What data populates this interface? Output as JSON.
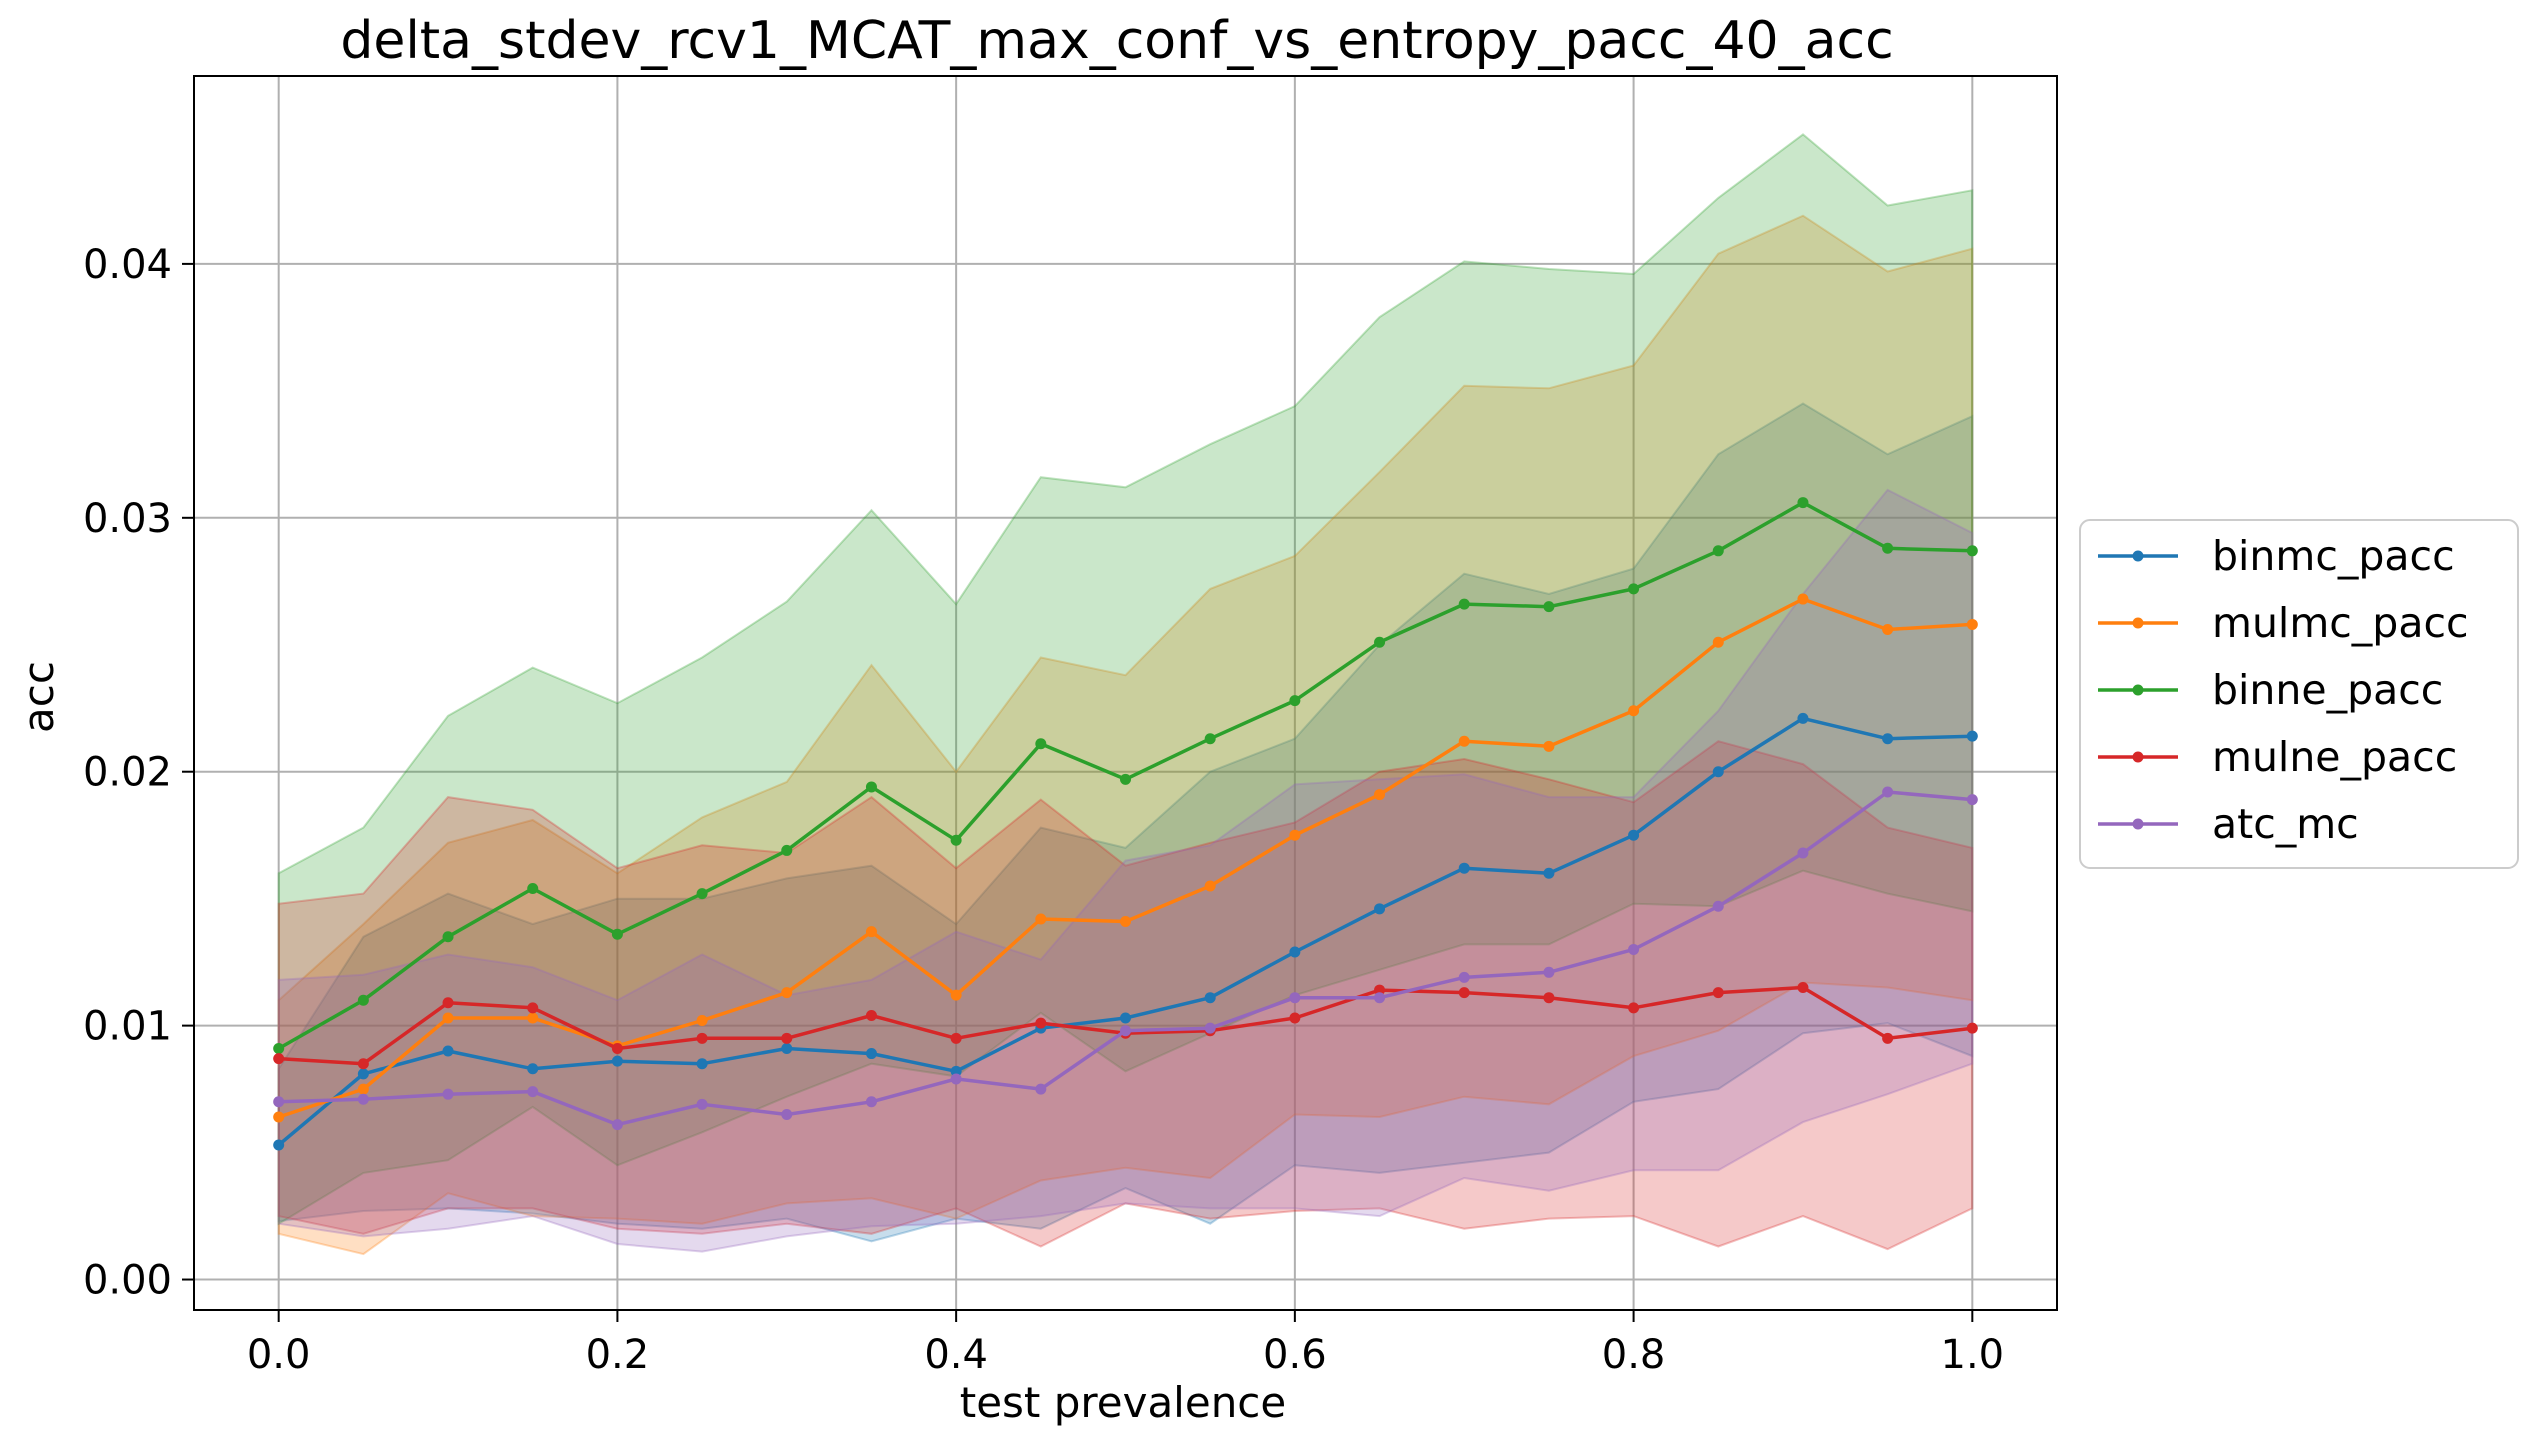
{
  "chart_data": {
    "type": "line",
    "title": "delta_stdev_rcv1_MCAT_max_conf_vs_entropy_pacc_40_acc",
    "xlabel": "test prevalence",
    "ylabel": "acc",
    "xlim": [
      -0.05,
      1.05
    ],
    "ylim": [
      -0.0012,
      0.0474
    ],
    "grid": true,
    "legend_position": "center-right outside",
    "x": [
      0.0,
      0.05,
      0.1,
      0.15,
      0.2,
      0.25,
      0.3,
      0.35,
      0.4,
      0.45,
      0.5,
      0.55,
      0.6,
      0.65,
      0.7,
      0.75,
      0.8,
      0.85,
      0.9,
      0.95,
      1.0
    ],
    "x_ticks": [
      "0.0",
      "0.2",
      "0.4",
      "0.6",
      "0.8",
      "1.0"
    ],
    "x_tick_values": [
      0.0,
      0.2,
      0.4,
      0.6,
      0.8,
      1.0
    ],
    "y_ticks": [
      "0.00",
      "0.01",
      "0.02",
      "0.03",
      "0.04"
    ],
    "y_tick_values": [
      0.0,
      0.01,
      0.02,
      0.03,
      0.04
    ],
    "series": [
      {
        "name": "binmc_pacc",
        "color": "#1f77b4",
        "values": [
          0.0053,
          0.0081,
          0.009,
          0.0083,
          0.0086,
          0.0085,
          0.0091,
          0.0089,
          0.0082,
          0.0099,
          0.0103,
          0.0111,
          0.0129,
          0.0146,
          0.0162,
          0.016,
          0.0175,
          0.02,
          0.0221,
          0.0213,
          0.0214
        ],
        "upper": [
          0.0083,
          0.0135,
          0.0152,
          0.014,
          0.015,
          0.015,
          0.0158,
          0.0163,
          0.014,
          0.0178,
          0.017,
          0.02,
          0.0213,
          0.025,
          0.0278,
          0.027,
          0.028,
          0.0325,
          0.0345,
          0.0325,
          0.034
        ],
        "lower": [
          0.0023,
          0.0027,
          0.0028,
          0.0026,
          0.0022,
          0.002,
          0.0024,
          0.0015,
          0.0024,
          0.002,
          0.0036,
          0.0022,
          0.0045,
          0.0042,
          0.0046,
          0.005,
          0.007,
          0.0075,
          0.0097,
          0.0101,
          0.0088
        ]
      },
      {
        "name": "mulmc_pacc",
        "color": "#ff7f0e",
        "values": [
          0.0064,
          0.0075,
          0.0103,
          0.0103,
          0.0092,
          0.0102,
          0.0113,
          0.0137,
          0.0112,
          0.0142,
          0.0141,
          0.0155,
          0.0175,
          0.0191,
          0.0212,
          0.021,
          0.0224,
          0.0251,
          0.0268,
          0.0256,
          0.0258
        ],
        "upper": [
          0.011,
          0.014,
          0.0172,
          0.0181,
          0.016,
          0.0182,
          0.0196,
          0.0242,
          0.02,
          0.0245,
          0.0238,
          0.0272,
          0.0285,
          0.0318,
          0.0352,
          0.0351,
          0.036,
          0.0404,
          0.0419,
          0.0397,
          0.0406
        ],
        "lower": [
          0.0018,
          0.001,
          0.0034,
          0.0025,
          0.0024,
          0.0022,
          0.003,
          0.0032,
          0.0024,
          0.0039,
          0.0044,
          0.004,
          0.0065,
          0.0064,
          0.0072,
          0.0069,
          0.0088,
          0.0098,
          0.0117,
          0.0115,
          0.011
        ]
      },
      {
        "name": "binne_pacc",
        "color": "#2ca02c",
        "values": [
          0.0091,
          0.011,
          0.0135,
          0.0154,
          0.0136,
          0.0152,
          0.0169,
          0.0194,
          0.0173,
          0.0211,
          0.0197,
          0.0213,
          0.0228,
          0.0251,
          0.0266,
          0.0265,
          0.0272,
          0.0287,
          0.0306,
          0.0288,
          0.0287
        ],
        "upper": [
          0.016,
          0.0178,
          0.0222,
          0.0241,
          0.0227,
          0.0245,
          0.0267,
          0.0303,
          0.0266,
          0.0316,
          0.0312,
          0.0329,
          0.0344,
          0.0379,
          0.0401,
          0.0398,
          0.0396,
          0.0426,
          0.0451,
          0.0423,
          0.0429
        ],
        "lower": [
          0.0022,
          0.0042,
          0.0047,
          0.0068,
          0.0045,
          0.0058,
          0.0072,
          0.0085,
          0.008,
          0.0105,
          0.0082,
          0.0097,
          0.0112,
          0.0122,
          0.0132,
          0.0132,
          0.0148,
          0.0147,
          0.0161,
          0.0152,
          0.0145
        ]
      },
      {
        "name": "mulne_pacc",
        "color": "#d62728",
        "values": [
          0.0087,
          0.0085,
          0.0109,
          0.0107,
          0.0091,
          0.0095,
          0.0095,
          0.0104,
          0.0095,
          0.0101,
          0.0097,
          0.0098,
          0.0103,
          0.0114,
          0.0113,
          0.0111,
          0.0107,
          0.0113,
          0.0115,
          0.0095,
          0.0099
        ],
        "upper": [
          0.0148,
          0.0152,
          0.019,
          0.0185,
          0.0162,
          0.0171,
          0.0168,
          0.019,
          0.0162,
          0.0189,
          0.0163,
          0.0172,
          0.018,
          0.02,
          0.0205,
          0.0197,
          0.0188,
          0.0212,
          0.0203,
          0.0178,
          0.017
        ],
        "lower": [
          0.0025,
          0.0018,
          0.0028,
          0.0028,
          0.002,
          0.0018,
          0.0022,
          0.0018,
          0.0028,
          0.0013,
          0.003,
          0.0024,
          0.0027,
          0.0028,
          0.002,
          0.0024,
          0.0025,
          0.0013,
          0.0025,
          0.0012,
          0.0028
        ]
      },
      {
        "name": "atc_mc",
        "color": "#9467bd",
        "values": [
          0.007,
          0.0071,
          0.0073,
          0.0074,
          0.0061,
          0.0069,
          0.0065,
          0.007,
          0.0079,
          0.0075,
          0.0098,
          0.0099,
          0.0111,
          0.0111,
          0.0119,
          0.0121,
          0.013,
          0.0147,
          0.0168,
          0.0192,
          0.0189
        ],
        "upper": [
          0.0118,
          0.012,
          0.0128,
          0.0123,
          0.011,
          0.0128,
          0.0112,
          0.0118,
          0.0137,
          0.0126,
          0.0165,
          0.0171,
          0.0195,
          0.0197,
          0.0199,
          0.019,
          0.019,
          0.0224,
          0.027,
          0.0311,
          0.0294
        ],
        "lower": [
          0.0022,
          0.0017,
          0.002,
          0.0025,
          0.0014,
          0.0011,
          0.0017,
          0.0021,
          0.0022,
          0.0025,
          0.003,
          0.0028,
          0.0028,
          0.0025,
          0.004,
          0.0035,
          0.0043,
          0.0043,
          0.0062,
          0.0073,
          0.0085
        ]
      }
    ]
  }
}
